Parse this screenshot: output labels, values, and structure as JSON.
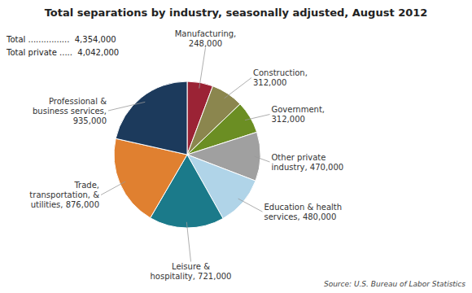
{
  "chart_data": {
    "type": "pie",
    "title": "Total separations by industry, seasonally adjusted, August 2012",
    "categories": [
      "Manufacturing,\n248,000",
      "Construction,\n312,000",
      "Government,\n312,000",
      "Other private\nindustry, 470,000",
      "Education & health\nservices, 480,000",
      "Leisure &\nhospitality, 721,000",
      "Trade,\ntransportation, &\nutilities, 876,000",
      "Professional &\nbusiness services,\n935,000"
    ],
    "values": [
      248000,
      312000,
      312000,
      470000,
      480000,
      721000,
      876000,
      935000
    ],
    "colors": [
      "#9B2335",
      "#8B864E",
      "#6B8E23",
      "#A0A0A0",
      "#B0D4E8",
      "#1B7A8A",
      "#E08030",
      "#1C3A5C"
    ],
    "annotations": [
      "Total ................  4,354,000",
      "Total private .....  4,042,000",
      "Source: U.S. Bureau of Labor Statistics"
    ]
  }
}
